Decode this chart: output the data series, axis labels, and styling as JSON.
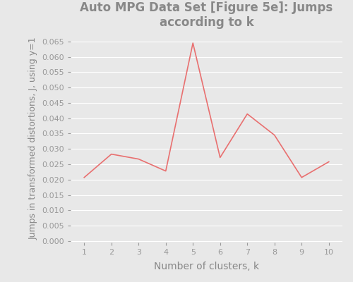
{
  "title": "Auto MPG Data Set [Figure 5e]: Jumps\naccording to k",
  "xlabel": "Number of clusters, k",
  "ylabel": "Jumps in transformed distortions, J, using y=1",
  "x": [
    1,
    2,
    3,
    4,
    5,
    6,
    7,
    8,
    9,
    10
  ],
  "y": [
    0.0207,
    0.0283,
    0.0267,
    0.0228,
    0.0645,
    0.0272,
    0.0414,
    0.0345,
    0.0207,
    0.0258
  ],
  "line_color": "#e87070",
  "bg_color": "#e8e8e8",
  "fig_bg_color": "#e8e8e8",
  "ylim": [
    -0.0005,
    0.0675
  ],
  "yticks": [
    0.0,
    0.005,
    0.01,
    0.015,
    0.02,
    0.025,
    0.03,
    0.035,
    0.04,
    0.045,
    0.05,
    0.055,
    0.06,
    0.065
  ],
  "xticks": [
    1,
    2,
    3,
    4,
    5,
    6,
    7,
    8,
    9,
    10
  ],
  "title_fontsize": 12,
  "xlabel_fontsize": 10,
  "ylabel_fontsize": 9,
  "tick_label_fontsize": 8,
  "tick_color": "#999999",
  "grid_color": "#ffffff",
  "title_color": "#888888",
  "label_color": "#888888"
}
